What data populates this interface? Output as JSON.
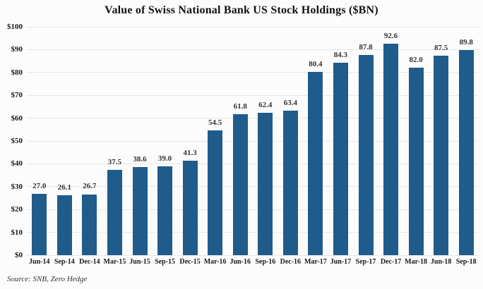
{
  "chart_data": {
    "type": "bar",
    "title": "Value of Swiss National Bank US Stock Holdings ($BN)",
    "categories": [
      "Jun-14",
      "Sep-14",
      "Dec-14",
      "Mar-15",
      "Jun-15",
      "Sep-15",
      "Dec-15",
      "Mar-16",
      "Jun-16",
      "Sep-16",
      "Dec-16",
      "Mar-17",
      "Jun-17",
      "Sep-17",
      "Dec-17",
      "Mar-18",
      "Jun-18",
      "Sep-18"
    ],
    "values": [
      27.0,
      26.1,
      26.7,
      37.5,
      38.6,
      39.0,
      41.3,
      54.5,
      61.8,
      62.4,
      63.4,
      80.4,
      84.3,
      87.8,
      92.6,
      82.0,
      87.5,
      89.8
    ],
    "value_label_decimals": 1,
    "xlabel": "",
    "ylabel": "",
    "ylim": [
      0,
      100
    ],
    "ytick_step": 10,
    "ytick_labels": [
      "$0",
      "$10",
      "$20",
      "$30",
      "$40",
      "$50",
      "$60",
      "$70",
      "$80",
      "$90",
      "$100"
    ],
    "grid": "horizontal",
    "legend": "none",
    "bar_color": "#1f5c8b",
    "gridline_color": "#e7e7e7",
    "label_color": "#333333",
    "axis_text_color": "#1a1a1a"
  },
  "source_note": "Source: SNB, Zero Hedge"
}
